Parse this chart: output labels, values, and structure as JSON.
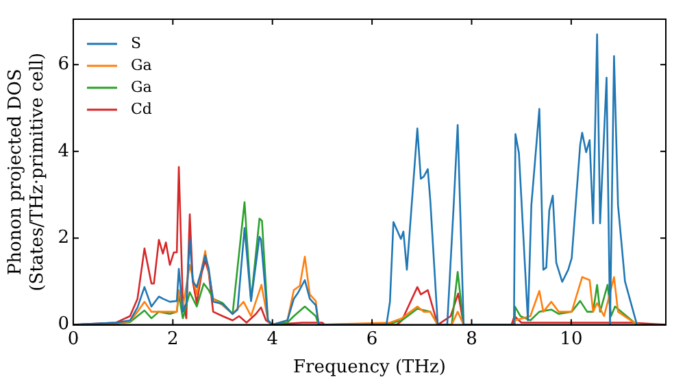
{
  "chart_data": {
    "type": "line",
    "xlabel": "Frequency (THz)",
    "ylabel": "Phonon projected DOS\n(States/THz·primitive cell)",
    "xlim": [
      0,
      11.9
    ],
    "xticks": [
      0,
      2,
      4,
      6,
      8,
      10
    ],
    "ylim": [
      0,
      7.05
    ],
    "yticks": [
      0,
      2,
      4,
      6
    ],
    "grid": false,
    "legend": "top left",
    "marker": "none",
    "line_style": "solid",
    "series": [
      {
        "name": "S",
        "color": "#1f77b4",
        "x": [
          0,
          0.86,
          1.14,
          1.29,
          1.43,
          1.57,
          1.72,
          1.8,
          1.94,
          2.08,
          2.12,
          2.2,
          2.27,
          2.34,
          2.4,
          2.48,
          2.58,
          2.65,
          2.72,
          2.81,
          3.0,
          3.2,
          3.3,
          3.44,
          3.57,
          3.74,
          3.77,
          3.91,
          4.0,
          4.3,
          4.43,
          4.52,
          4.65,
          4.75,
          4.87,
          4.93,
          6.29,
          6.36,
          6.43,
          6.58,
          6.63,
          6.7,
          6.91,
          6.98,
          7.04,
          7.12,
          7.17,
          7.32,
          7.51,
          7.64,
          7.72,
          7.84,
          8.85,
          8.88,
          8.95,
          9.13,
          9.2,
          9.36,
          9.44,
          9.5,
          9.56,
          9.63,
          9.7,
          9.82,
          9.94,
          10.01,
          10.18,
          10.22,
          10.3,
          10.37,
          10.44,
          10.52,
          10.58,
          10.71,
          10.78,
          10.86,
          10.94,
          11.08,
          11.32
        ],
        "values": [
          0,
          0.05,
          0.1,
          0.4,
          0.87,
          0.42,
          0.65,
          0.6,
          0.53,
          0.55,
          1.29,
          0.3,
          0.5,
          1.98,
          1.0,
          0.87,
          1.27,
          1.6,
          1.3,
          0.53,
          0.48,
          0.25,
          0.35,
          2.23,
          0.55,
          2.03,
          1.97,
          0.1,
          0,
          0.1,
          0.6,
          0.75,
          1.03,
          0.6,
          0.45,
          0,
          0,
          0.53,
          2.37,
          1.98,
          2.15,
          1.27,
          4.53,
          3.37,
          3.42,
          3.59,
          2.87,
          0,
          0,
          2.76,
          4.61,
          0,
          0,
          4.4,
          3.96,
          0.1,
          2.76,
          4.98,
          1.27,
          1.32,
          2.64,
          2.98,
          1.43,
          0.99,
          1.27,
          1.54,
          4.15,
          4.43,
          3.98,
          4.26,
          2.34,
          6.7,
          2.34,
          5.7,
          0,
          6.2,
          2.76,
          1.0,
          0
        ]
      },
      {
        "name": "Ga",
        "color": "#ff7f0e",
        "x": [
          0,
          0.86,
          1.14,
          1.29,
          1.43,
          1.57,
          1.72,
          2.08,
          2.12,
          2.2,
          2.34,
          2.48,
          2.65,
          2.81,
          3.0,
          3.2,
          3.42,
          3.57,
          3.78,
          3.91,
          4.0,
          4.3,
          4.43,
          4.55,
          4.65,
          4.75,
          4.87,
          4.93,
          6.36,
          6.6,
          6.91,
          7.04,
          7.17,
          7.32,
          7.6,
          7.72,
          7.84,
          8.85,
          8.87,
          9.18,
          9.36,
          9.44,
          9.6,
          9.75,
          10.01,
          10.22,
          10.37,
          10.44,
          10.52,
          10.66,
          10.86,
          10.94,
          11.26,
          11.4
        ],
        "values": [
          0,
          0.03,
          0.08,
          0.3,
          0.53,
          0.3,
          0.3,
          0.3,
          0.8,
          0.4,
          1.38,
          0.7,
          1.7,
          0.6,
          0.45,
          0.25,
          0.53,
          0.2,
          0.92,
          0.1,
          0,
          0.1,
          0.8,
          0.9,
          1.57,
          0.7,
          0.55,
          0,
          0.05,
          0.15,
          0.42,
          0.3,
          0.3,
          0,
          0,
          0.3,
          0,
          0,
          0.1,
          0.2,
          0.78,
          0.3,
          0.53,
          0.3,
          0.3,
          1.1,
          1.03,
          0.3,
          0.5,
          0.2,
          1.1,
          0.3,
          0.05,
          0
        ]
      },
      {
        "name": "Ga",
        "color": "#2ca02c",
        "x": [
          0,
          0.86,
          1.14,
          1.29,
          1.43,
          1.57,
          1.72,
          1.94,
          2.08,
          2.12,
          2.2,
          2.34,
          2.48,
          2.62,
          2.72,
          2.81,
          3.0,
          3.2,
          3.44,
          3.57,
          3.74,
          3.79,
          3.91,
          4.0,
          4.3,
          4.43,
          4.65,
          4.87,
          4.93,
          6.36,
          6.6,
          6.91,
          7.17,
          7.32,
          7.6,
          7.72,
          7.84,
          8.85,
          8.87,
          8.98,
          9.18,
          9.36,
          9.6,
          9.75,
          10.01,
          10.18,
          10.32,
          10.44,
          10.52,
          10.58,
          10.73,
          10.8,
          10.88,
          11.32
        ],
        "values": [
          0,
          0.03,
          0.06,
          0.2,
          0.33,
          0.15,
          0.3,
          0.25,
          0.3,
          0.7,
          0.15,
          0.75,
          0.42,
          0.95,
          0.8,
          0.6,
          0.5,
          0.25,
          2.83,
          0.55,
          2.45,
          2.4,
          0.1,
          0,
          0.05,
          0.2,
          0.42,
          0.2,
          0,
          0.03,
          0.1,
          0.37,
          0.3,
          0,
          0,
          1.22,
          0,
          0,
          0.42,
          0.2,
          0.1,
          0.3,
          0.35,
          0.25,
          0.3,
          0.55,
          0.3,
          0.3,
          0.92,
          0.3,
          0.92,
          0.2,
          0.42,
          0
        ]
      },
      {
        "name": "Cd",
        "color": "#d62728",
        "x": [
          0,
          0.86,
          1.14,
          1.29,
          1.43,
          1.57,
          1.62,
          1.72,
          1.8,
          1.86,
          1.94,
          2.02,
          2.08,
          2.12,
          2.2,
          2.27,
          2.34,
          2.4,
          2.48,
          2.58,
          2.65,
          2.72,
          2.81,
          3.0,
          3.2,
          3.33,
          3.48,
          3.67,
          3.77,
          3.87,
          4.0,
          4.6,
          5.0,
          5.05,
          6.5,
          6.6,
          6.91,
          6.98,
          7.12,
          7.22,
          7.32,
          7.58,
          7.73,
          7.84,
          8.8,
          8.86,
          9.0,
          11.2,
          11.9
        ],
        "values": [
          0,
          0.05,
          0.2,
          0.6,
          1.76,
          0.95,
          0.95,
          1.96,
          1.64,
          1.9,
          1.38,
          1.67,
          1.67,
          3.64,
          0.53,
          0.15,
          2.55,
          1.0,
          0.5,
          1.2,
          1.48,
          1.2,
          0.3,
          0.2,
          0.1,
          0.2,
          0.05,
          0.25,
          0.4,
          0.1,
          0,
          0.05,
          0.05,
          0,
          0,
          0.1,
          0.87,
          0.7,
          0.8,
          0.4,
          0,
          0.2,
          0.72,
          0,
          0,
          0.2,
          0.05,
          0.05,
          0
        ]
      }
    ]
  }
}
